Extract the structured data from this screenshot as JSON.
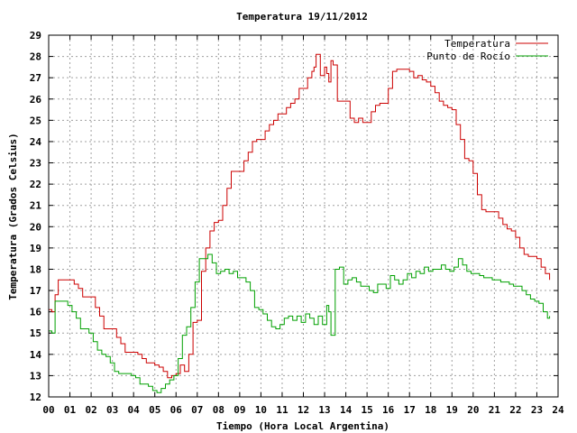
{
  "chart_data": {
    "type": "line",
    "title": "Temperatura 19/11/2012",
    "xlabel": "Tiempo (Hora Local Argentina)",
    "ylabel": "Temperatura (Grados Celsius)",
    "xlim": [
      0,
      24
    ],
    "ylim": [
      12,
      29
    ],
    "x_tick_labels": [
      "00",
      "01",
      "02",
      "03",
      "04",
      "05",
      "06",
      "07",
      "08",
      "09",
      "10",
      "11",
      "12",
      "13",
      "14",
      "15",
      "16",
      "17",
      "18",
      "19",
      "20",
      "21",
      "22",
      "23",
      "24"
    ],
    "y_ticks": [
      12,
      13,
      14,
      15,
      16,
      17,
      18,
      19,
      20,
      21,
      22,
      23,
      24,
      25,
      26,
      27,
      28,
      29
    ],
    "grid": true,
    "legend_position": "top-right",
    "series": [
      {
        "name": "Temperatura",
        "color": "#cc0000",
        "x": [
          0,
          0.15,
          0.3,
          0.45,
          0.6,
          0.8,
          1.0,
          1.2,
          1.4,
          1.6,
          1.8,
          2.0,
          2.2,
          2.4,
          2.6,
          2.8,
          3.0,
          3.2,
          3.4,
          3.6,
          3.8,
          4.0,
          4.2,
          4.4,
          4.6,
          4.8,
          5.0,
          5.2,
          5.4,
          5.6,
          5.8,
          6.0,
          6.2,
          6.4,
          6.6,
          6.8,
          7.0,
          7.2,
          7.4,
          7.6,
          7.8,
          8.0,
          8.2,
          8.4,
          8.6,
          8.8,
          9.0,
          9.2,
          9.4,
          9.6,
          9.8,
          10.0,
          10.2,
          10.4,
          10.6,
          10.8,
          11.0,
          11.2,
          11.4,
          11.6,
          11.8,
          12.0,
          12.2,
          12.4,
          12.5,
          12.6,
          12.8,
          13.0,
          13.1,
          13.2,
          13.3,
          13.4,
          13.6,
          13.8,
          14.0,
          14.2,
          14.4,
          14.6,
          14.8,
          15.0,
          15.2,
          15.4,
          15.6,
          15.8,
          16.0,
          16.2,
          16.4,
          16.6,
          16.8,
          17.0,
          17.2,
          17.4,
          17.6,
          17.8,
          18.0,
          18.2,
          18.4,
          18.6,
          18.8,
          19.0,
          19.2,
          19.4,
          19.6,
          19.8,
          20.0,
          20.2,
          20.4,
          20.6,
          20.8,
          21.0,
          21.2,
          21.4,
          21.6,
          21.8,
          22.0,
          22.2,
          22.4,
          22.6,
          22.8,
          23.0,
          23.2,
          23.4,
          23.6
        ],
        "y": [
          16.1,
          16.0,
          16.8,
          17.5,
          17.5,
          17.5,
          17.5,
          17.3,
          17.1,
          16.7,
          16.7,
          16.7,
          16.2,
          15.8,
          15.2,
          15.2,
          15.2,
          14.8,
          14.5,
          14.1,
          14.1,
          14.1,
          14.0,
          13.8,
          13.6,
          13.6,
          13.5,
          13.4,
          13.2,
          12.9,
          13.0,
          13.1,
          13.5,
          13.2,
          14.0,
          15.5,
          15.6,
          17.9,
          19.0,
          19.8,
          20.2,
          20.3,
          21.0,
          21.8,
          22.6,
          22.6,
          22.6,
          23.1,
          23.5,
          24.0,
          24.1,
          24.1,
          24.5,
          24.8,
          25.0,
          25.3,
          25.3,
          25.6,
          25.8,
          26.0,
          26.5,
          26.5,
          27.0,
          27.3,
          27.5,
          28.1,
          27.1,
          27.5,
          27.2,
          26.8,
          27.8,
          27.6,
          25.9,
          25.9,
          25.9,
          25.1,
          24.9,
          25.1,
          24.9,
          24.9,
          25.4,
          25.7,
          25.8,
          25.8,
          26.5,
          27.3,
          27.4,
          27.4,
          27.4,
          27.3,
          27.0,
          27.1,
          26.9,
          26.8,
          26.6,
          26.3,
          25.9,
          25.7,
          25.6,
          25.5,
          24.8,
          24.1,
          23.2,
          23.1,
          22.5,
          21.5,
          20.8,
          20.7,
          20.7,
          20.7,
          20.4,
          20.1,
          19.9,
          19.8,
          19.5,
          19.0,
          18.7,
          18.6,
          18.6,
          18.5,
          18.1,
          17.8,
          17.5
        ]
      },
      {
        "name": "Punto de Rocío",
        "color": "#00a000",
        "x": [
          0,
          0.15,
          0.3,
          0.5,
          0.7,
          0.9,
          1.1,
          1.3,
          1.5,
          1.7,
          1.9,
          2.1,
          2.3,
          2.5,
          2.7,
          2.9,
          3.1,
          3.3,
          3.5,
          3.7,
          3.9,
          4.1,
          4.3,
          4.5,
          4.7,
          4.9,
          5.1,
          5.3,
          5.5,
          5.7,
          5.9,
          6.1,
          6.3,
          6.5,
          6.7,
          6.9,
          7.1,
          7.3,
          7.5,
          7.7,
          7.9,
          8.1,
          8.3,
          8.5,
          8.7,
          8.9,
          9.1,
          9.3,
          9.5,
          9.7,
          9.9,
          10.1,
          10.3,
          10.5,
          10.7,
          10.9,
          11.1,
          11.3,
          11.5,
          11.7,
          11.9,
          12.1,
          12.3,
          12.5,
          12.7,
          12.9,
          13.1,
          13.2,
          13.3,
          13.5,
          13.7,
          13.9,
          14.1,
          14.3,
          14.5,
          14.7,
          14.9,
          15.1,
          15.3,
          15.5,
          15.7,
          15.9,
          16.1,
          16.3,
          16.5,
          16.7,
          16.9,
          17.1,
          17.3,
          17.5,
          17.7,
          17.9,
          18.1,
          18.3,
          18.5,
          18.7,
          18.9,
          19.1,
          19.3,
          19.5,
          19.7,
          19.9,
          20.1,
          20.3,
          20.5,
          20.7,
          20.9,
          21.1,
          21.3,
          21.5,
          21.7,
          21.9,
          22.1,
          22.3,
          22.5,
          22.7,
          22.9,
          23.1,
          23.3,
          23.5,
          23.6
        ],
        "y": [
          15.1,
          15.0,
          16.5,
          16.5,
          16.5,
          16.3,
          16.0,
          15.7,
          15.2,
          15.2,
          15.0,
          14.6,
          14.2,
          14.0,
          13.9,
          13.6,
          13.2,
          13.1,
          13.1,
          13.1,
          13.0,
          12.9,
          12.6,
          12.6,
          12.5,
          12.3,
          12.2,
          12.4,
          12.6,
          12.8,
          13.0,
          13.8,
          14.9,
          15.3,
          16.2,
          17.4,
          18.5,
          18.5,
          18.7,
          18.3,
          17.8,
          17.9,
          18.0,
          17.8,
          17.9,
          17.6,
          17.6,
          17.4,
          17.0,
          16.2,
          16.1,
          15.9,
          15.6,
          15.3,
          15.2,
          15.4,
          15.7,
          15.8,
          15.6,
          15.8,
          15.5,
          15.9,
          15.7,
          15.4,
          15.8,
          15.4,
          16.3,
          16.0,
          14.9,
          18.0,
          18.1,
          17.3,
          17.5,
          17.6,
          17.4,
          17.2,
          17.2,
          17.0,
          16.9,
          17.3,
          17.3,
          17.1,
          17.7,
          17.5,
          17.3,
          17.5,
          17.8,
          17.6,
          17.9,
          17.8,
          18.1,
          17.9,
          18.0,
          18.0,
          18.2,
          18.0,
          17.9,
          18.1,
          18.5,
          18.2,
          17.9,
          17.8,
          17.8,
          17.7,
          17.6,
          17.6,
          17.5,
          17.5,
          17.4,
          17.4,
          17.3,
          17.2,
          17.2,
          17.0,
          16.8,
          16.6,
          16.5,
          16.4,
          16.0,
          15.7,
          15.8
        ]
      }
    ]
  }
}
